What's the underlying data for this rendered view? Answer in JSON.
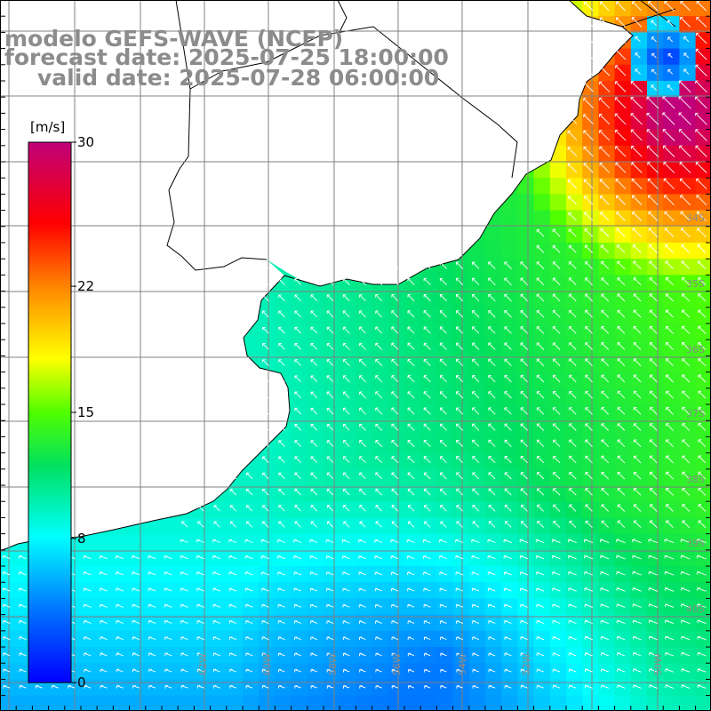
{
  "header": {
    "model": "modelo GEFS-WAVE (NCEP)",
    "forecast": "forecast date: 2025-07-25 18:00:00",
    "valid": "valid date: 2025-07-28 06:00:00"
  },
  "colorbar": {
    "unit": "[m/s]",
    "ticks": [
      {
        "label": "30",
        "value": 30
      },
      {
        "label": "22",
        "value": 22
      },
      {
        "label": "15",
        "value": 15
      },
      {
        "label": "8",
        "value": 8
      },
      {
        "label": "0",
        "value": 0
      }
    ],
    "colors": [
      "#0000ff",
      "#0090ff",
      "#00e8ff",
      "#00e040",
      "#88ff00",
      "#ffff00",
      "#ff9900",
      "#ff0000",
      "#c0006a"
    ]
  },
  "map": {
    "lat_labels": [
      "34S",
      "35S",
      "36S",
      "37S",
      "38S",
      "39S",
      "40S"
    ],
    "lon_labels": [
      "62W",
      "60W",
      "58W",
      "56W",
      "54W",
      "52W",
      "50W"
    ],
    "land_color": "#ffffff",
    "grid_color": "#808080",
    "arrow_color": "#ffffff",
    "arrow_direction": "toward-northwest"
  }
}
